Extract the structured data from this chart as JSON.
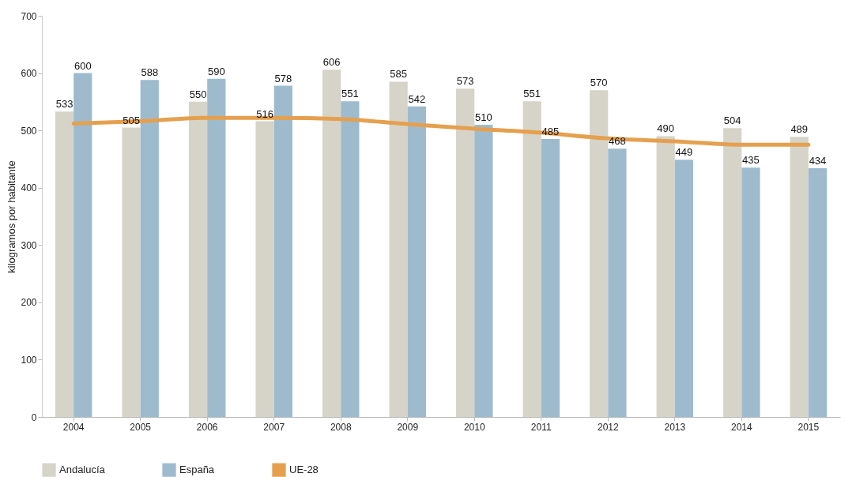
{
  "chart_data": {
    "type": "bar",
    "ylabel": "kilogramos por habitante",
    "categories": [
      "2004",
      "2005",
      "2006",
      "2007",
      "2008",
      "2009",
      "2010",
      "2011",
      "2012",
      "2013",
      "2014",
      "2015"
    ],
    "series": [
      {
        "name": "Andalucía",
        "color": "#d6d4c8",
        "values": [
          533,
          505,
          550,
          516,
          606,
          585,
          573,
          551,
          570,
          490,
          504,
          489
        ],
        "value_labels": [
          "533",
          "505",
          "550",
          "516",
          "606",
          "585",
          "573",
          "551",
          "570",
          "490",
          "504",
          "489"
        ]
      },
      {
        "name": "España",
        "color": "#9ebbce",
        "values": [
          600,
          588,
          590,
          578,
          551,
          542,
          510,
          485,
          468,
          449,
          435,
          434
        ],
        "value_labels": [
          "600",
          "588",
          "590",
          "578",
          "551",
          "542",
          "510",
          "485",
          "468",
          "449",
          "435",
          "434"
        ]
      },
      {
        "name": "UE-28",
        "type": "line",
        "color": "#e5a04f",
        "values": [
          512,
          516,
          522,
          522,
          520,
          511,
          503,
          496,
          486,
          481,
          475,
          475
        ]
      }
    ],
    "ylim": [
      0,
      700
    ],
    "yticks": [
      0,
      100,
      200,
      300,
      400,
      500,
      600,
      700
    ],
    "grid": false,
    "legend": "bottom"
  }
}
